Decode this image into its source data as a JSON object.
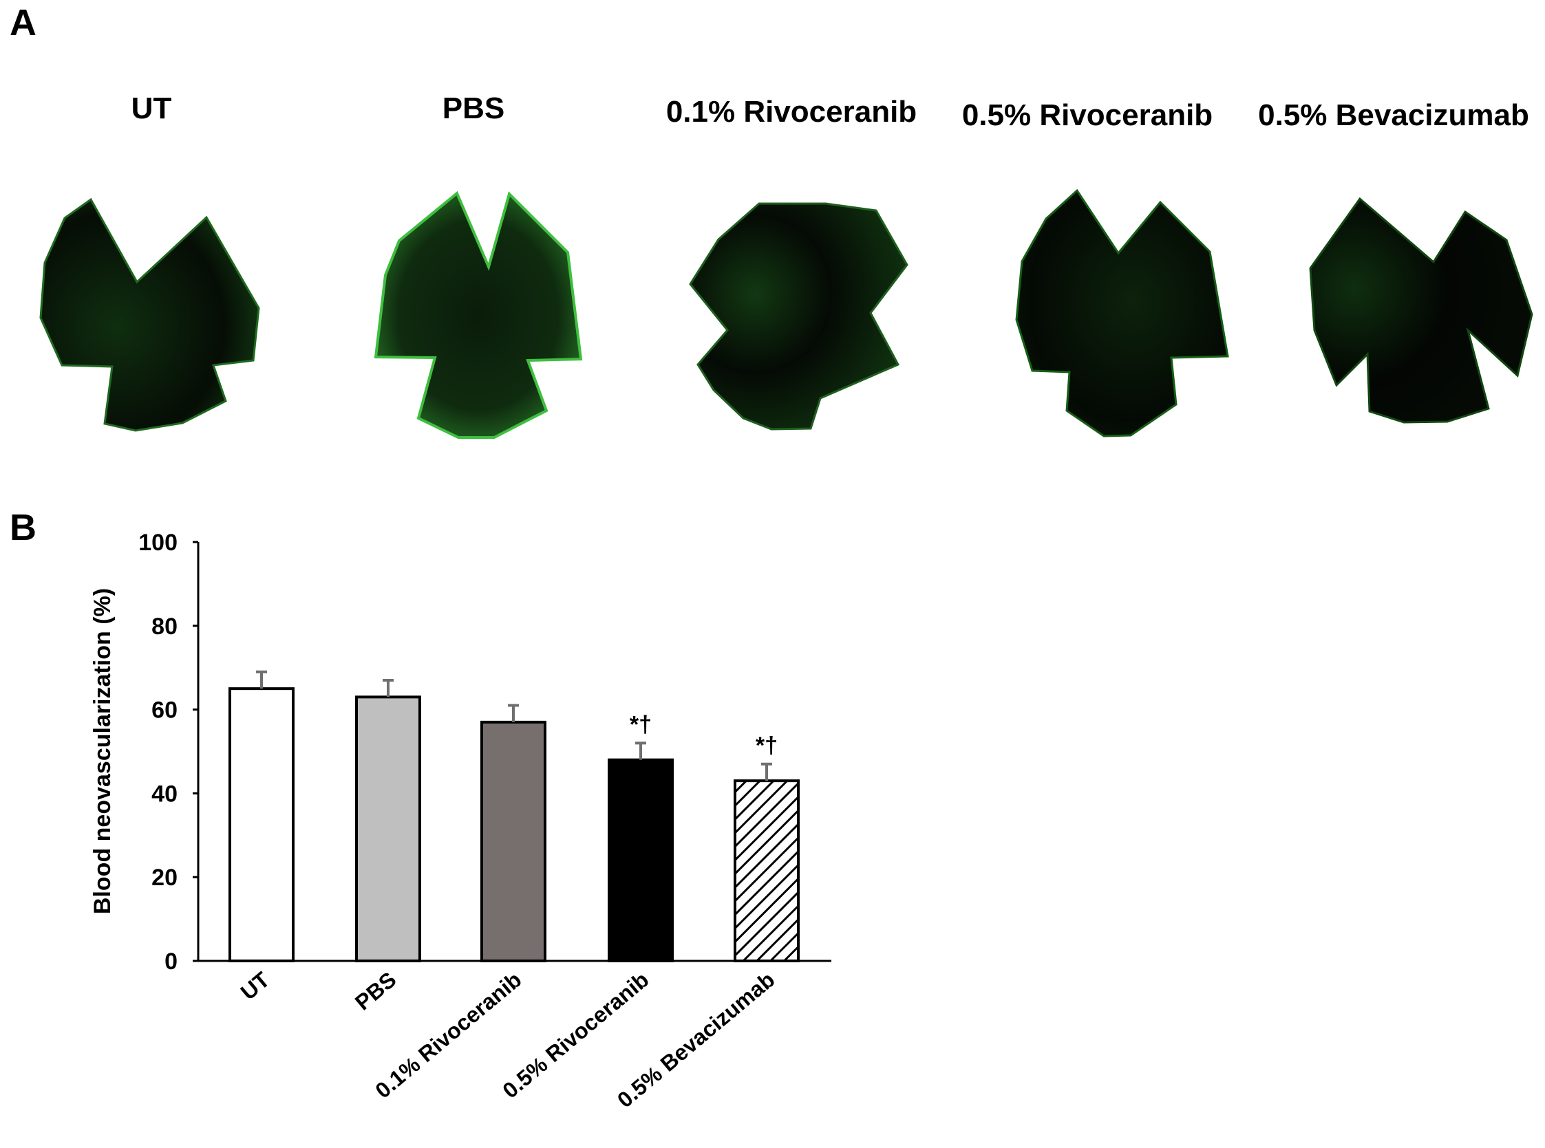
{
  "panels": {
    "a_label": "A",
    "b_label": "B"
  },
  "images": [
    {
      "label": "UT",
      "color": "#2fa82f"
    },
    {
      "label": "PBS",
      "color": "#3fcf3f"
    },
    {
      "label": "0.1% Rivoceranib",
      "color": "#2a9a2a"
    },
    {
      "label": "0.5% Rivoceranib",
      "color": "#228a22"
    },
    {
      "label": "0.5% Bevacizumab",
      "color": "#1f7f1f"
    }
  ],
  "chart_data": {
    "type": "bar",
    "categories": [
      "UT",
      "PBS",
      "0.1% Rivoceranib",
      "0.5% Rivoceranib",
      "0.5% Bevacizumab"
    ],
    "values": [
      65,
      63,
      57,
      48,
      43
    ],
    "errors": [
      4,
      4,
      4,
      4,
      4
    ],
    "annotations": [
      "",
      "",
      "",
      "*†",
      "*†"
    ],
    "fills": [
      "#ffffff",
      "#bfbfbf",
      "#776e6e",
      "#000000",
      "hatch"
    ],
    "ylabel": "Blood neovascularization (%)",
    "xlabel": "",
    "ylim": [
      0,
      100
    ],
    "yticks": [
      0,
      20,
      40,
      60,
      80,
      100
    ],
    "grid": false
  }
}
